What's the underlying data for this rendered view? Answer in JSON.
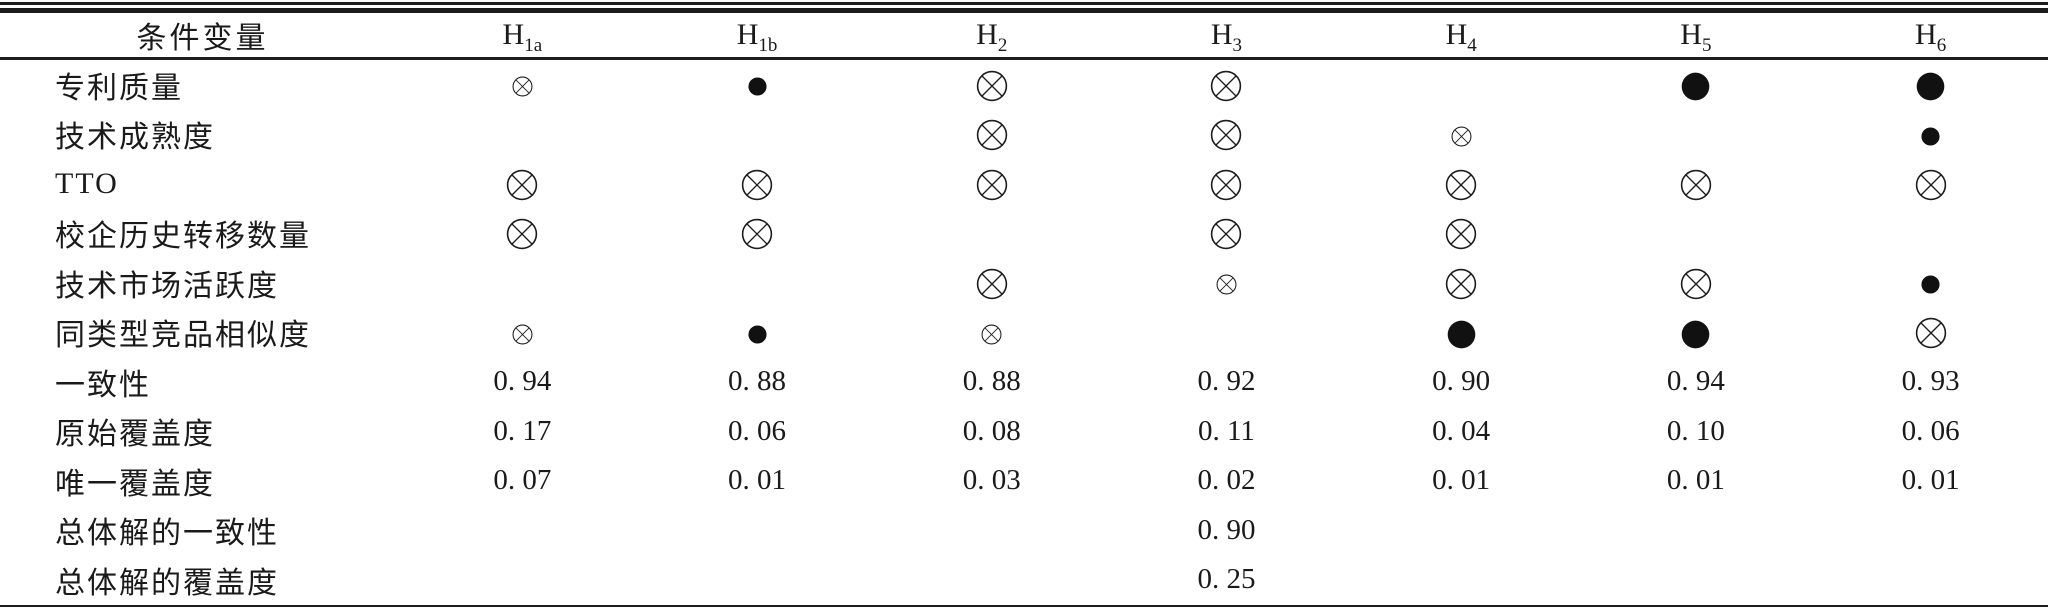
{
  "table": {
    "header": {
      "label_col": "条件变量",
      "config_cols": [
        {
          "id": "h1a",
          "base": "H",
          "sub": "1a"
        },
        {
          "id": "h1b",
          "base": "H",
          "sub": "1b"
        },
        {
          "id": "h2",
          "base": "H",
          "sub": "2"
        },
        {
          "id": "h3",
          "base": "H",
          "sub": "3"
        },
        {
          "id": "h4",
          "base": "H",
          "sub": "4"
        },
        {
          "id": "h5",
          "base": "H",
          "sub": "5"
        },
        {
          "id": "h6",
          "base": "H",
          "sub": "6"
        }
      ]
    },
    "symbols": {
      "LX": {
        "glyph": "circle-cross",
        "size": "large"
      },
      "SX": {
        "glyph": "circle-cross",
        "size": "small"
      },
      "LF": {
        "glyph": "filled-circle",
        "size": "large"
      },
      "SF": {
        "glyph": "filled-circle",
        "size": "small"
      }
    },
    "rows": [
      {
        "id": "patent-quality",
        "label": "专利质量",
        "cells": [
          "SX",
          "SF",
          "LX",
          "LX",
          "",
          "LF",
          "LF"
        ]
      },
      {
        "id": "tech-maturity",
        "label": "技术成熟度",
        "cells": [
          "",
          "",
          "LX",
          "LX",
          "SX",
          "",
          "SF"
        ]
      },
      {
        "id": "tto",
        "label": "TTO",
        "cells": [
          "LX",
          "LX",
          "LX",
          "LX",
          "LX",
          "LX",
          "LX"
        ]
      },
      {
        "id": "school-firm-transfer-count",
        "label": "校企历史转移数量",
        "cells": [
          "LX",
          "LX",
          "",
          "LX",
          "LX",
          "",
          ""
        ]
      },
      {
        "id": "tech-market-activity",
        "label": "技术市场活跃度",
        "cells": [
          "",
          "",
          "LX",
          "SX",
          "LX",
          "LX",
          "SF"
        ]
      },
      {
        "id": "competitor-similarity",
        "label": "同类型竞品相似度",
        "cells": [
          "SX",
          "SF",
          "SX",
          "",
          "LF",
          "LF",
          "LX"
        ]
      },
      {
        "id": "consistency",
        "label": "一致性",
        "cells": [
          "0. 94",
          "0. 88",
          "0. 88",
          "0. 92",
          "0. 90",
          "0. 94",
          "0. 93"
        ]
      },
      {
        "id": "raw-coverage",
        "label": "原始覆盖度",
        "cells": [
          "0. 17",
          "0. 06",
          "0. 08",
          "0. 11",
          "0. 04",
          "0. 10",
          "0. 06"
        ]
      },
      {
        "id": "unique-coverage",
        "label": "唯一覆盖度",
        "cells": [
          "0. 07",
          "0. 01",
          "0. 03",
          "0. 02",
          "0. 01",
          "0. 01",
          "0. 01"
        ]
      },
      {
        "id": "overall-solution-consistency",
        "label": "总体解的一致性",
        "cells": [
          "",
          "",
          "",
          "0. 90",
          "",
          "",
          ""
        ]
      },
      {
        "id": "overall-solution-coverage",
        "label": "总体解的覆盖度",
        "cells": [
          "",
          "",
          "",
          "0. 25",
          "",
          "",
          ""
        ]
      }
    ]
  },
  "chart_data": {
    "type": "table",
    "columns": [
      "条件变量",
      "H1a",
      "H1b",
      "H2",
      "H3",
      "H4",
      "H5",
      "H6"
    ],
    "rows": [
      [
        "专利质量",
        "small-circle-cross",
        "small-filled-circle",
        "large-circle-cross",
        "large-circle-cross",
        "",
        "large-filled-circle",
        "large-filled-circle"
      ],
      [
        "技术成熟度",
        "",
        "",
        "large-circle-cross",
        "large-circle-cross",
        "small-circle-cross",
        "",
        "small-filled-circle"
      ],
      [
        "TTO",
        "large-circle-cross",
        "large-circle-cross",
        "large-circle-cross",
        "large-circle-cross",
        "large-circle-cross",
        "large-circle-cross",
        "large-circle-cross"
      ],
      [
        "校企历史转移数量",
        "large-circle-cross",
        "large-circle-cross",
        "",
        "large-circle-cross",
        "large-circle-cross",
        "",
        ""
      ],
      [
        "技术市场活跃度",
        "",
        "",
        "large-circle-cross",
        "small-circle-cross",
        "large-circle-cross",
        "large-circle-cross",
        "small-filled-circle"
      ],
      [
        "同类型竞品相似度",
        "small-circle-cross",
        "small-filled-circle",
        "small-circle-cross",
        "",
        "large-filled-circle",
        "large-filled-circle",
        "large-circle-cross"
      ],
      [
        "一致性",
        0.94,
        0.88,
        0.88,
        0.92,
        0.9,
        0.94,
        0.93
      ],
      [
        "原始覆盖度",
        0.17,
        0.06,
        0.08,
        0.11,
        0.04,
        0.1,
        0.06
      ],
      [
        "唯一覆盖度",
        0.07,
        0.01,
        0.03,
        0.02,
        0.01,
        0.01,
        0.01
      ],
      [
        "总体解的一致性",
        "",
        "",
        "",
        0.9,
        "",
        "",
        ""
      ],
      [
        "总体解的覆盖度",
        "",
        "",
        "",
        0.25,
        "",
        "",
        ""
      ]
    ]
  }
}
